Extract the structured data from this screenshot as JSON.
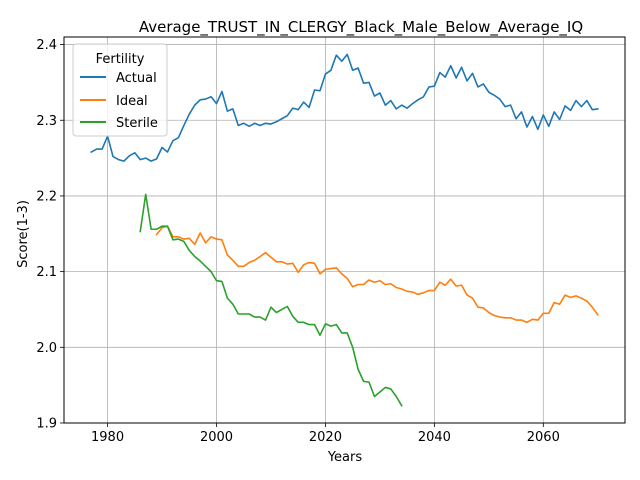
{
  "chart_data": {
    "type": "line",
    "title": "Average_TRUST_IN_CLERGY_Black_Male_Below_Average_IQ",
    "xlabel": "Years",
    "ylabel": "Score(1-3)",
    "xlim": [
      1972,
      2075
    ],
    "ylim": [
      1.9,
      2.41
    ],
    "xticks": [
      1980,
      2000,
      2020,
      2040,
      2060
    ],
    "yticks": [
      1.9,
      2.0,
      2.1,
      2.2,
      2.3,
      2.4
    ],
    "ytick_labels": [
      "1.9",
      "2.0",
      "2.1",
      "2.2",
      "2.3",
      "2.4"
    ],
    "grid": true,
    "legend": {
      "title": "Fertility",
      "position": "top-left"
    },
    "series": [
      {
        "name": "Actual",
        "color": "#1f77b4",
        "x": [
          1977,
          1978,
          1979,
          1980,
          1981,
          1982,
          1983,
          1984,
          1985,
          1986,
          1987,
          1988,
          1989,
          1990,
          1991,
          1992,
          1993,
          1994,
          1995,
          1996,
          1997,
          1998,
          1999,
          2000,
          2001,
          2002,
          2003,
          2004,
          2005,
          2006,
          2007,
          2008,
          2009,
          2010,
          2011,
          2012,
          2013,
          2014,
          2015,
          2016,
          2017,
          2018,
          2019,
          2020,
          2021,
          2022,
          2023,
          2024,
          2025,
          2026,
          2027,
          2028,
          2029,
          2030,
          2031,
          2032,
          2033,
          2034,
          2035,
          2036,
          2037,
          2038,
          2039,
          2040,
          2041,
          2042,
          2043,
          2044,
          2045,
          2046,
          2047,
          2048,
          2049,
          2050,
          2051,
          2052,
          2053,
          2054,
          2055,
          2056,
          2057,
          2058,
          2059,
          2060,
          2061,
          2062,
          2063,
          2064,
          2065,
          2066,
          2067,
          2068,
          2069,
          2070
        ],
        "values": [
          2.258,
          2.262,
          2.262,
          2.279,
          2.252,
          2.248,
          2.246,
          2.253,
          2.257,
          2.248,
          2.25,
          2.246,
          2.249,
          2.264,
          2.258,
          2.273,
          2.277,
          2.293,
          2.308,
          2.32,
          2.327,
          2.328,
          2.331,
          2.322,
          2.338,
          2.312,
          2.315,
          2.293,
          2.296,
          2.292,
          2.296,
          2.293,
          2.296,
          2.295,
          2.298,
          2.302,
          2.306,
          2.316,
          2.314,
          2.324,
          2.317,
          2.34,
          2.339,
          2.361,
          2.366,
          2.386,
          2.378,
          2.387,
          2.366,
          2.369,
          2.349,
          2.35,
          2.332,
          2.336,
          2.32,
          2.326,
          2.315,
          2.32,
          2.316,
          2.322,
          2.327,
          2.331,
          2.344,
          2.345,
          2.363,
          2.357,
          2.372,
          2.356,
          2.37,
          2.352,
          2.362,
          2.344,
          2.348,
          2.337,
          2.333,
          2.328,
          2.318,
          2.32,
          2.302,
          2.311,
          2.291,
          2.305,
          2.288,
          2.307,
          2.292,
          2.311,
          2.301,
          2.319,
          2.313,
          2.326,
          2.318,
          2.326,
          2.314,
          2.315
        ]
      },
      {
        "name": "Ideal",
        "color": "#ff7f0e",
        "x": [
          1989,
          1990,
          1991,
          1992,
          1993,
          1994,
          1995,
          1996,
          1997,
          1998,
          1999,
          2000,
          2001,
          2002,
          2003,
          2004,
          2005,
          2006,
          2007,
          2008,
          2009,
          2010,
          2011,
          2012,
          2013,
          2014,
          2015,
          2016,
          2017,
          2018,
          2019,
          2020,
          2021,
          2022,
          2023,
          2024,
          2025,
          2026,
          2027,
          2028,
          2029,
          2030,
          2031,
          2032,
          2033,
          2034,
          2035,
          2036,
          2037,
          2038,
          2039,
          2040,
          2041,
          2042,
          2043,
          2044,
          2045,
          2046,
          2047,
          2048,
          2049,
          2050,
          2051,
          2052,
          2053,
          2054,
          2055,
          2056,
          2057,
          2058,
          2059,
          2060,
          2061,
          2062,
          2063,
          2064,
          2065,
          2066,
          2067,
          2068,
          2069,
          2070
        ],
        "values": [
          2.149,
          2.158,
          2.16,
          2.146,
          2.146,
          2.143,
          2.144,
          2.136,
          2.151,
          2.138,
          2.146,
          2.143,
          2.142,
          2.122,
          2.115,
          2.107,
          2.107,
          2.112,
          2.115,
          2.12,
          2.125,
          2.119,
          2.113,
          2.113,
          2.11,
          2.111,
          2.099,
          2.109,
          2.112,
          2.111,
          2.097,
          2.103,
          2.104,
          2.105,
          2.097,
          2.091,
          2.08,
          2.083,
          2.083,
          2.089,
          2.086,
          2.088,
          2.083,
          2.084,
          2.079,
          2.077,
          2.074,
          2.073,
          2.07,
          2.072,
          2.075,
          2.075,
          2.086,
          2.082,
          2.09,
          2.081,
          2.082,
          2.069,
          2.065,
          2.053,
          2.052,
          2.046,
          2.042,
          2.04,
          2.039,
          2.039,
          2.036,
          2.036,
          2.033,
          2.037,
          2.036,
          2.045,
          2.045,
          2.059,
          2.057,
          2.069,
          2.066,
          2.068,
          2.065,
          2.061,
          2.053,
          2.043
        ]
      },
      {
        "name": "Sterile",
        "color": "#2ca02c",
        "x": [
          1986,
          1987,
          1988,
          1989,
          1990,
          1991,
          1992,
          1993,
          1994,
          1995,
          1996,
          1997,
          1998,
          1999,
          2000,
          2001,
          2002,
          2003,
          2004,
          2005,
          2006,
          2007,
          2008,
          2009,
          2010,
          2011,
          2012,
          2013,
          2014,
          2015,
          2016,
          2017,
          2018,
          2019,
          2020,
          2021,
          2022,
          2023,
          2024,
          2025,
          2026,
          2027,
          2028,
          2029,
          2030,
          2031,
          2032,
          2033,
          2034
        ],
        "values": [
          2.153,
          2.202,
          2.156,
          2.156,
          2.16,
          2.16,
          2.142,
          2.143,
          2.14,
          2.128,
          2.12,
          2.114,
          2.107,
          2.1,
          2.088,
          2.087,
          2.065,
          2.057,
          2.044,
          2.044,
          2.044,
          2.04,
          2.04,
          2.036,
          2.053,
          2.046,
          2.05,
          2.054,
          2.041,
          2.033,
          2.033,
          2.03,
          2.03,
          2.016,
          2.031,
          2.028,
          2.03,
          2.019,
          2.019,
          2.0,
          1.971,
          1.955,
          1.954,
          1.935,
          1.941,
          1.947,
          1.945,
          1.935,
          1.923
        ]
      }
    ]
  }
}
